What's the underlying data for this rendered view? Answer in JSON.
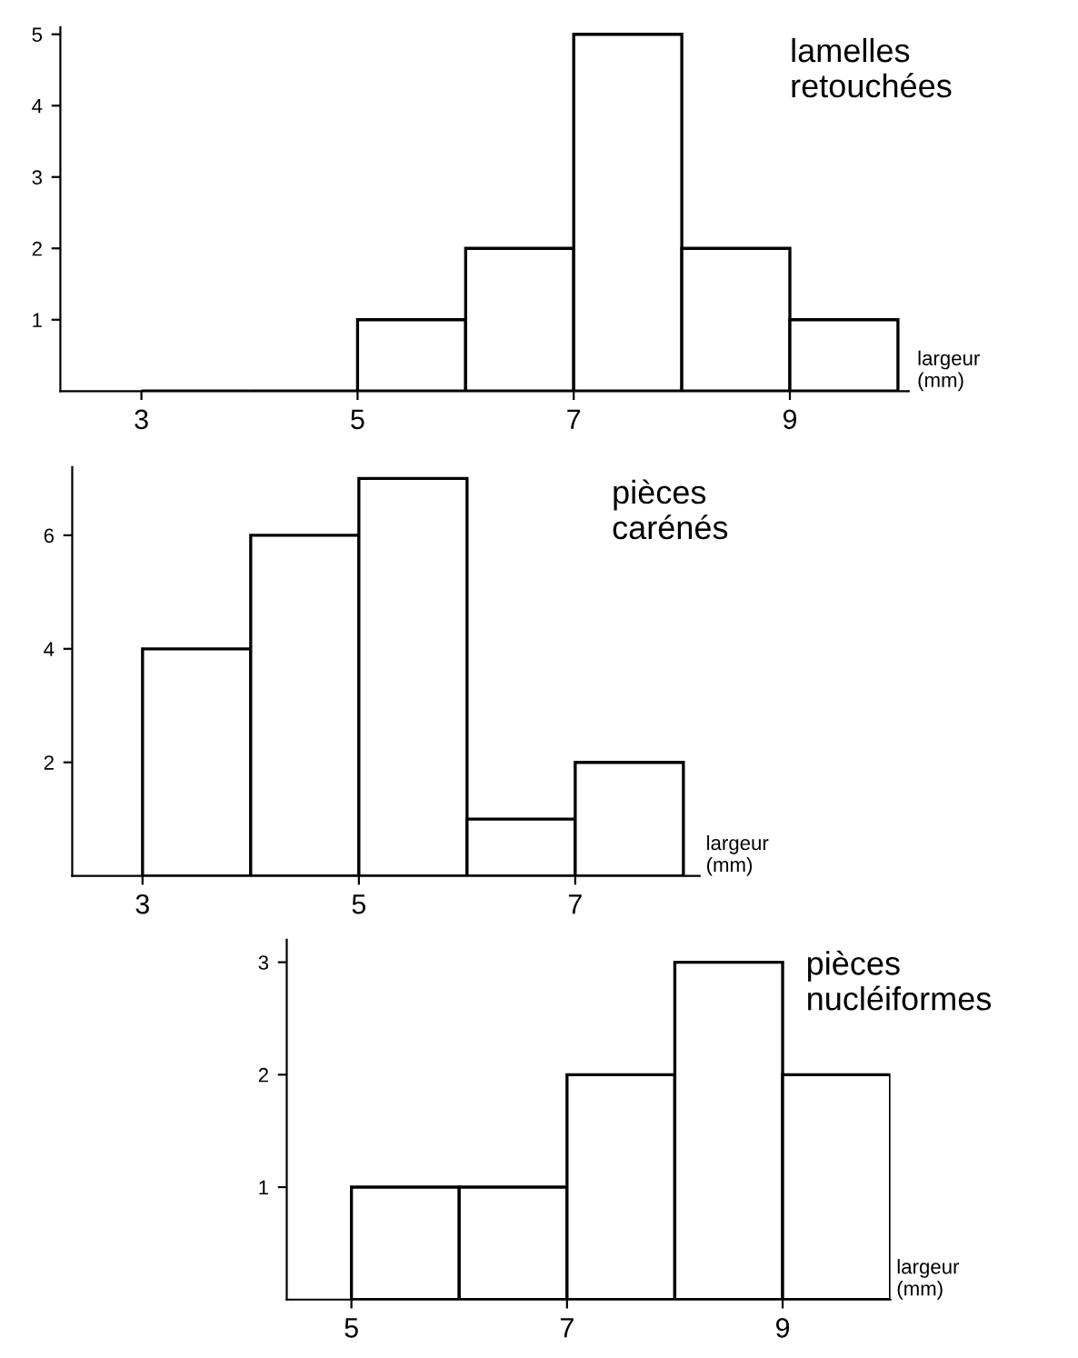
{
  "chart_data": [
    {
      "type": "histogram",
      "title": "lamelles\nretouchées",
      "xlabel": "largeur\n(mm)",
      "bins": [
        3,
        4,
        5,
        6,
        7,
        8,
        9,
        10
      ],
      "values": [
        0,
        0,
        1,
        2,
        5,
        2,
        1
      ],
      "color": "#ffffff",
      "xlim": [
        2.25,
        10.1
      ],
      "xticks": [
        3,
        5,
        7,
        9
      ],
      "ylim": [
        0,
        5.1
      ],
      "yticks": [
        1,
        2,
        3,
        4,
        5
      ],
      "grid": false
    },
    {
      "type": "histogram",
      "title": "pièces\ncarénés",
      "xlabel": "largeur\n(mm)",
      "bins": [
        3,
        4,
        5,
        6,
        7,
        8
      ],
      "values": [
        4,
        6,
        7,
        1,
        2
      ],
      "color": "#ffffff",
      "xlim": [
        2.35,
        8.15
      ],
      "xticks": [
        3,
        5,
        7
      ],
      "ylim": [
        0,
        7.2
      ],
      "yticks": [
        2,
        4,
        6
      ],
      "grid": false
    },
    {
      "type": "histogram",
      "title": "pièces\nnucléiformes",
      "xlabel": "largeur\n(mm)",
      "bins": [
        5,
        6,
        7,
        8,
        9,
        10
      ],
      "values": [
        1,
        1,
        2,
        3,
        2
      ],
      "color": "#ffffff",
      "xlim": [
        4.4,
        10
      ],
      "xticks": [
        5,
        7,
        9
      ],
      "ylim": [
        0,
        3.2
      ],
      "yticks": [
        1,
        2,
        3
      ],
      "grid": false
    }
  ]
}
